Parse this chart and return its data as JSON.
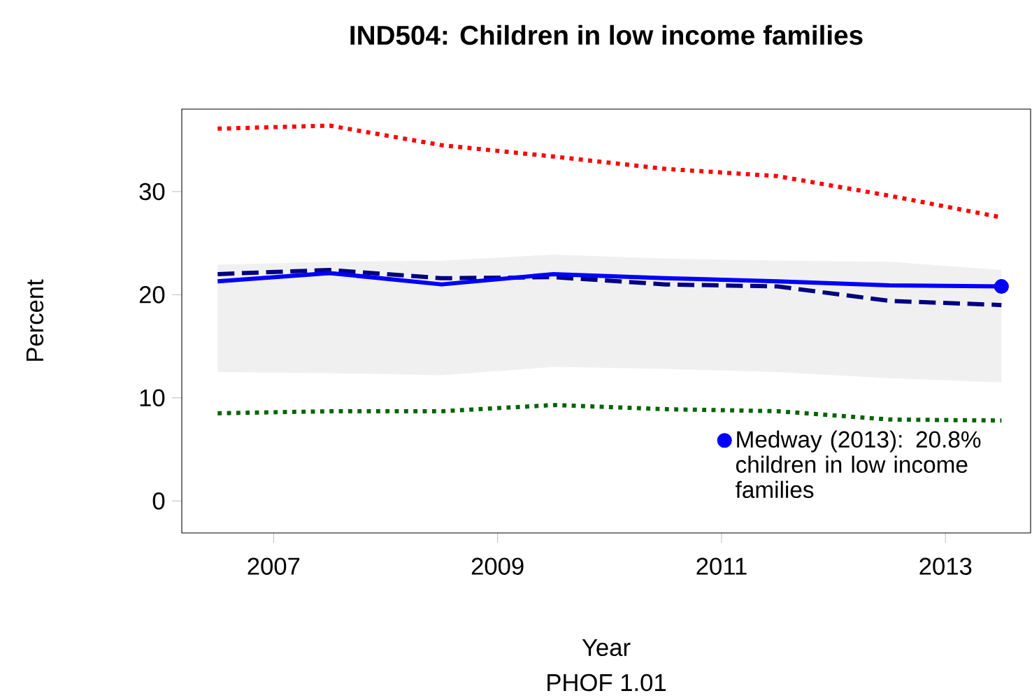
{
  "chart_data": {
    "type": "line",
    "title": "IND504: Children in low income families",
    "xlabel": "Year",
    "ylabel": "Percent",
    "annotations": [
      "PHOF 1.01"
    ],
    "xlim": [
      2006.18,
      2013.76
    ],
    "ylim": [
      -3.1,
      38
    ],
    "xticks": [
      2007,
      2009,
      2011,
      2013
    ],
    "yticks": [
      0,
      10,
      20,
      30
    ],
    "grid": false,
    "legend": "bottom right",
    "series": [
      {
        "color": "#ff0000",
        "line_style": "dotted",
        "x": [
          2006.5,
          2007.5,
          2008.5,
          2009.5,
          2010.5,
          2011.5,
          2012.5,
          2013.5
        ],
        "values": [
          36.1,
          36.4,
          34.5,
          33.4,
          32.2,
          31.5,
          29.6,
          27.5
        ]
      },
      {
        "color": "#000080",
        "line_style": "dashed",
        "x": [
          2006.5,
          2007.5,
          2008.5,
          2009.5,
          2010.5,
          2011.5,
          2012.5,
          2013.5
        ],
        "values": [
          22.0,
          22.4,
          21.6,
          21.7,
          21.0,
          20.8,
          19.4,
          19.0
        ],
        "lower": [
          12.5,
          12.4,
          12.2,
          13.0,
          12.8,
          12.5,
          11.9,
          11.5
        ],
        "upper": [
          22.9,
          23.2,
          23.3,
          23.9,
          23.5,
          23.3,
          23.2,
          22.4
        ]
      },
      {
        "color": "#0000ff",
        "line_style": "solid",
        "x": [
          2006.5,
          2007.5,
          2008.5,
          2009.5,
          2010.5,
          2011.5,
          2012.5,
          2013.5
        ],
        "values": [
          21.3,
          22.1,
          21.0,
          22.0,
          21.6,
          21.3,
          20.9,
          20.8
        ]
      },
      {
        "color": "#006400",
        "line_style": "dotted",
        "x": [
          2006.5,
          2007.5,
          2008.5,
          2009.5,
          2010.5,
          2011.5,
          2012.5,
          2013.5
        ],
        "values": [
          8.5,
          8.7,
          8.7,
          9.3,
          8.9,
          8.7,
          7.9,
          7.8
        ]
      },
      {
        "type": "scatter",
        "name": "Medway (2013): 20.8% children in low income families",
        "color": "#0000ff",
        "marker": "circle",
        "x": [
          2013.5
        ],
        "values": [
          20.8
        ]
      }
    ]
  }
}
